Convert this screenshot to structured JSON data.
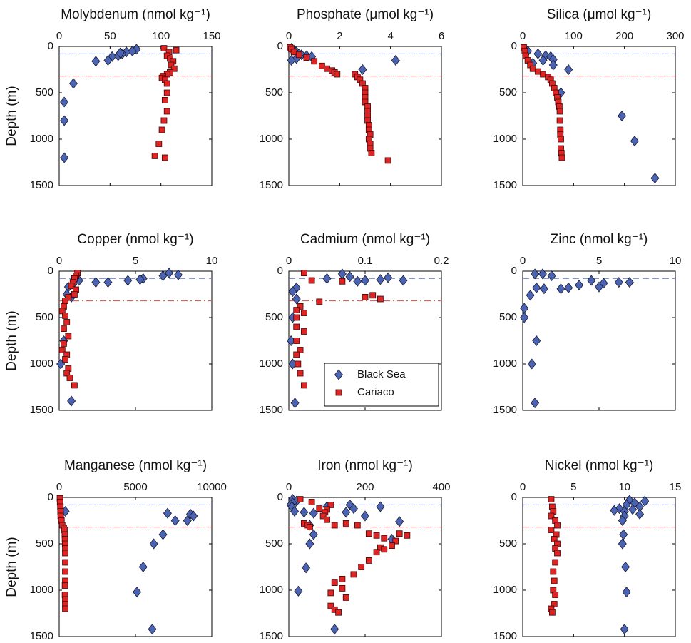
{
  "chart_data": [
    {
      "type": "scatter",
      "title": "Molybdenum (nmol kg⁻¹)",
      "ylabel": "Depth (m)",
      "xlim": [
        0,
        150
      ],
      "xticks": [
        0,
        50,
        100,
        150
      ],
      "ylim": [
        0,
        1500
      ],
      "yticks": [
        0,
        500,
        1000,
        1500
      ],
      "y_inverted": true,
      "hlines": [
        {
          "value": 80,
          "color": "#6f8ad6",
          "style": "dashed"
        },
        {
          "value": 320,
          "color": "#e04848",
          "style": "dashdot"
        }
      ],
      "series": [
        {
          "color": "#4a63b3",
          "marker": "diamond",
          "x": [
            76,
            72,
            66,
            62,
            58,
            60,
            52,
            36,
            48,
            14,
            5,
            5,
            5
          ],
          "y": [
            30,
            50,
            60,
            80,
            100,
            70,
            110,
            160,
            150,
            400,
            600,
            800,
            1200
          ]
        },
        {
          "color": "#e02424",
          "marker": "square",
          "x": [
            103,
            115,
            108,
            106,
            109,
            112,
            110,
            113,
            109,
            106,
            102,
            101,
            104,
            106,
            106,
            104,
            106,
            103,
            101,
            98,
            94,
            104
          ],
          "y": [
            20,
            40,
            60,
            100,
            130,
            160,
            200,
            240,
            280,
            300,
            320,
            340,
            360,
            400,
            500,
            580,
            700,
            800,
            900,
            1050,
            1180,
            1200
          ]
        }
      ]
    },
    {
      "type": "scatter",
      "title": "Phosphate (μmol kg⁻¹)",
      "xlim": [
        0,
        6
      ],
      "xticks": [
        0,
        2,
        4,
        6
      ],
      "ylim": [
        0,
        1500
      ],
      "yticks": [
        0,
        500,
        1000,
        1500
      ],
      "y_inverted": true,
      "hlines": [
        {
          "value": 80,
          "color": "#6f8ad6",
          "style": "dashed"
        },
        {
          "value": 320,
          "color": "#e04848",
          "style": "dashdot"
        }
      ],
      "series": [
        {
          "color": "#4a63b3",
          "marker": "diamond",
          "x": [
            0.1,
            0.2,
            0.3,
            0.4,
            0.5,
            0.7,
            0.9,
            0.3,
            0.1,
            4.2,
            2.9
          ],
          "y": [
            20,
            40,
            60,
            80,
            90,
            100,
            110,
            130,
            150,
            150,
            250
          ]
        },
        {
          "color": "#e02424",
          "marker": "square",
          "x": [
            0.05,
            0.1,
            0.2,
            0.4,
            0.7,
            1.0,
            1.3,
            1.5,
            1.7,
            1.8,
            1.9,
            2.6,
            2.7,
            2.8,
            2.9,
            3.0,
            3.0,
            3.0,
            3.0,
            3.1,
            3.1,
            3.1,
            3.1,
            3.15,
            3.15,
            3.2,
            3.15,
            3.2,
            3.2,
            3.25,
            3.9
          ],
          "y": [
            10,
            30,
            60,
            90,
            120,
            160,
            210,
            240,
            260,
            280,
            300,
            300,
            330,
            360,
            400,
            450,
            500,
            550,
            600,
            650,
            700,
            750,
            800,
            850,
            900,
            950,
            1000,
            1050,
            1100,
            1150,
            1230
          ]
        }
      ]
    },
    {
      "type": "scatter",
      "title": "Silica (μmol kg⁻¹)",
      "xlim": [
        0,
        300
      ],
      "xticks": [
        0,
        100,
        200,
        300
      ],
      "ylim": [
        0,
        1500
      ],
      "yticks": [
        0,
        500,
        1000,
        1500
      ],
      "y_inverted": true,
      "hlines": [
        {
          "value": 80,
          "color": "#6f8ad6",
          "style": "dashed"
        },
        {
          "value": 320,
          "color": "#e04848",
          "style": "dashdot"
        }
      ],
      "series": [
        {
          "color": "#4a63b3",
          "marker": "diamond",
          "x": [
            10,
            30,
            45,
            55,
            60,
            40,
            20,
            60,
            90,
            75,
            195,
            220,
            260
          ],
          "y": [
            50,
            80,
            100,
            110,
            140,
            150,
            180,
            200,
            250,
            500,
            750,
            1020,
            1420
          ]
        },
        {
          "color": "#e02424",
          "marker": "square",
          "x": [
            2,
            4,
            6,
            10,
            15,
            20,
            30,
            40,
            50,
            55,
            58,
            62,
            65,
            68,
            70,
            72,
            73,
            73,
            74,
            74,
            75,
            75,
            76,
            77
          ],
          "y": [
            10,
            50,
            100,
            150,
            200,
            240,
            270,
            300,
            330,
            360,
            400,
            450,
            500,
            550,
            600,
            650,
            700,
            800,
            900,
            950,
            1000,
            1100,
            1150,
            1200
          ]
        }
      ]
    },
    {
      "type": "scatter",
      "title": "Copper (nmol kg⁻¹)",
      "ylabel": "Depth (m)",
      "xlim": [
        0,
        10
      ],
      "xticks": [
        0,
        5,
        10
      ],
      "ylim": [
        0,
        1500
      ],
      "yticks": [
        0,
        500,
        1000,
        1500
      ],
      "y_inverted": true,
      "hlines": [
        {
          "value": 80,
          "color": "#6f8ad6",
          "style": "dashed"
        },
        {
          "value": 320,
          "color": "#e04848",
          "style": "dashdot"
        }
      ],
      "series": [
        {
          "color": "#4a63b3",
          "marker": "diamond",
          "x": [
            7.2,
            7.8,
            6.8,
            5.5,
            5.3,
            4.5,
            3.2,
            2.4,
            1.3,
            0.9,
            0.6,
            0.5,
            0.8,
            0.3,
            0.1,
            0.8
          ],
          "y": [
            20,
            40,
            50,
            80,
            90,
            100,
            120,
            120,
            100,
            140,
            170,
            250,
            280,
            750,
            1000,
            1400
          ]
        },
        {
          "color": "#e02424",
          "marker": "square",
          "x": [
            1.2,
            1.1,
            1.0,
            0.9,
            0.8,
            1.1,
            1.0,
            0.6,
            0.4,
            0.3,
            0.2,
            0.4,
            0.5,
            0.3,
            0.6,
            0.3,
            0.2,
            0.5,
            0.4,
            0.6,
            0.5,
            0.7,
            1.0
          ],
          "y": [
            20,
            50,
            80,
            120,
            160,
            200,
            250,
            280,
            320,
            380,
            430,
            480,
            550,
            620,
            700,
            780,
            850,
            900,
            950,
            1050,
            1100,
            1150,
            1230
          ]
        }
      ]
    },
    {
      "type": "scatter",
      "title": "Cadmium (nmol kg⁻¹)",
      "xlim": [
        0,
        0.2
      ],
      "xticks": [
        0,
        0.1,
        0.2
      ],
      "ylim": [
        0,
        1500
      ],
      "yticks": [
        0,
        500,
        1000,
        1500
      ],
      "y_inverted": true,
      "legend": "lower right",
      "hlines": [
        {
          "value": 80,
          "color": "#6f8ad6",
          "style": "dashed"
        },
        {
          "value": 320,
          "color": "#e04848",
          "style": "dashdot"
        }
      ],
      "series": [
        {
          "name": "Black Sea",
          "color": "#4a63b3",
          "marker": "diamond",
          "x": [
            0.07,
            0.08,
            0.1,
            0.13,
            0.15,
            0.12,
            0.09,
            0.05,
            0.01,
            0.005,
            0.01,
            0.005,
            0.003,
            0.005,
            0.008
          ],
          "y": [
            30,
            60,
            100,
            70,
            100,
            90,
            110,
            80,
            180,
            220,
            300,
            500,
            750,
            1000,
            1420
          ]
        },
        {
          "name": "Cariaco",
          "color": "#e02424",
          "marker": "square",
          "x": [
            0.02,
            0.03,
            0.07,
            0.11,
            0.12,
            0.1,
            0.04,
            0.015,
            0.01,
            0.02,
            0.01,
            0.01,
            0.02,
            0.01,
            0.015,
            0.01,
            0.012,
            0.015,
            0.02
          ],
          "y": [
            20,
            100,
            110,
            260,
            300,
            280,
            330,
            380,
            420,
            450,
            500,
            600,
            650,
            750,
            850,
            900,
            1000,
            1100,
            1230
          ]
        }
      ]
    },
    {
      "type": "scatter",
      "title": "Zinc (nmol kg⁻¹)",
      "xlim": [
        0,
        10
      ],
      "xticks": [
        0,
        5,
        10
      ],
      "ylim": [
        0,
        1500
      ],
      "yticks": [
        0,
        500,
        1000,
        1500
      ],
      "y_inverted": true,
      "hlines": [
        {
          "value": 80,
          "color": "#6f8ad6",
          "style": "dashed"
        }
      ],
      "series": [
        {
          "color": "#4a63b3",
          "marker": "diamond",
          "x": [
            0.8,
            1.3,
            1.9,
            4.5,
            5.3,
            6.3,
            7.0,
            5.0,
            3.7,
            3.0,
            2.5,
            1.4,
            0.9,
            0.5,
            0.1,
            0.1,
            0.9,
            0.6,
            0.8
          ],
          "y": [
            30,
            30,
            50,
            100,
            130,
            120,
            120,
            170,
            150,
            180,
            190,
            190,
            180,
            260,
            400,
            500,
            750,
            1000,
            1420
          ]
        }
      ]
    },
    {
      "type": "scatter",
      "title": "Manganese (nmol kg⁻¹)",
      "ylabel": "Depth (m)",
      "xlim": [
        0,
        10000
      ],
      "xticks": [
        0,
        5000,
        10000
      ],
      "ylim": [
        0,
        1500
      ],
      "yticks": [
        0,
        500,
        1000,
        1500
      ],
      "y_inverted": true,
      "hlines": [
        {
          "value": 80,
          "color": "#6f8ad6",
          "style": "dashed"
        },
        {
          "value": 320,
          "color": "#e04848",
          "style": "dashdot"
        }
      ],
      "series": [
        {
          "color": "#4a63b3",
          "marker": "diamond",
          "x": [
            400,
            7100,
            8600,
            8800,
            8400,
            7600,
            6800,
            6200,
            5500,
            5100,
            6100
          ],
          "y": [
            150,
            170,
            180,
            200,
            250,
            250,
            400,
            500,
            750,
            1020,
            1420
          ]
        },
        {
          "color": "#e02424",
          "marker": "square",
          "x": [
            50,
            60,
            80,
            90,
            100,
            150,
            200,
            300,
            350,
            370,
            380,
            390,
            400,
            400,
            400,
            400,
            400,
            380,
            380,
            400,
            400,
            400
          ],
          "y": [
            10,
            50,
            100,
            150,
            200,
            250,
            300,
            330,
            350,
            400,
            450,
            500,
            550,
            600,
            700,
            800,
            900,
            950,
            1050,
            1100,
            1150,
            1200
          ]
        }
      ]
    },
    {
      "type": "scatter",
      "title": "Iron (nmol kg⁻¹)",
      "xlim": [
        0,
        400
      ],
      "xticks": [
        0,
        200,
        400
      ],
      "ylim": [
        0,
        1500
      ],
      "yticks": [
        0,
        500,
        1000,
        1500
      ],
      "y_inverted": true,
      "hlines": [
        {
          "value": 80,
          "color": "#6f8ad6",
          "style": "dashed"
        },
        {
          "value": 320,
          "color": "#e04848",
          "style": "dashdot"
        }
      ],
      "series": [
        {
          "color": "#4a63b3",
          "marker": "diamond",
          "x": [
            10,
            20,
            10,
            5,
            8,
            15,
            40,
            65,
            100,
            150,
            160,
            170,
            200,
            240,
            290,
            270,
            55,
            65,
            55,
            45,
            25,
            120
          ],
          "y": [
            20,
            40,
            60,
            80,
            100,
            150,
            160,
            170,
            100,
            160,
            80,
            120,
            200,
            100,
            260,
            450,
            300,
            400,
            500,
            760,
            1010,
            1420
          ]
        },
        {
          "color": "#e02424",
          "marker": "square",
          "x": [
            30,
            60,
            80,
            110,
            100,
            95,
            90,
            100,
            120,
            150,
            180,
            40,
            50,
            55,
            210,
            230,
            290,
            310,
            250,
            280,
            270,
            240,
            250,
            230,
            210,
            190,
            170,
            140,
            120,
            140,
            110,
            150,
            110,
            120,
            130
          ],
          "y": [
            20,
            50,
            120,
            80,
            130,
            160,
            200,
            240,
            300,
            280,
            300,
            280,
            300,
            320,
            390,
            410,
            390,
            410,
            440,
            470,
            520,
            540,
            560,
            590,
            680,
            750,
            830,
            880,
            920,
            980,
            1030,
            1080,
            1170,
            1210,
            1240
          ]
        }
      ]
    },
    {
      "type": "scatter",
      "title": "Nickel (nmol kg⁻¹)",
      "xlim": [
        0,
        15
      ],
      "xticks": [
        0,
        5,
        10,
        15
      ],
      "ylim": [
        0,
        1500
      ],
      "yticks": [
        0,
        500,
        1000,
        1500
      ],
      "y_inverted": true,
      "hlines": [
        {
          "value": 80,
          "color": "#6f8ad6",
          "style": "dashed"
        },
        {
          "value": 320,
          "color": "#e04848",
          "style": "dashdot"
        }
      ],
      "series": [
        {
          "color": "#4a63b3",
          "marker": "diamond",
          "x": [
            10.5,
            11.0,
            12.0,
            10.2,
            11.5,
            9.5,
            9.0,
            10.0,
            10.8,
            11.5,
            10.0,
            9.8,
            9.9,
            9.8,
            10.1,
            10.2,
            10.0
          ],
          "y": [
            30,
            60,
            40,
            80,
            100,
            120,
            140,
            150,
            130,
            180,
            200,
            250,
            400,
            500,
            750,
            1020,
            1420
          ]
        },
        {
          "color": "#e02424",
          "marker": "square",
          "x": [
            2.8,
            2.9,
            3.0,
            2.8,
            3.2,
            3.4,
            2.8,
            3.3,
            3.1,
            3.4,
            3.2,
            3.4,
            3.2,
            3.0,
            3.1,
            3.0,
            3.2,
            3.1,
            2.8,
            2.9
          ],
          "y": [
            20,
            100,
            150,
            200,
            250,
            300,
            350,
            400,
            450,
            500,
            550,
            600,
            700,
            800,
            900,
            1000,
            1050,
            1150,
            1200,
            1240
          ]
        }
      ]
    }
  ]
}
